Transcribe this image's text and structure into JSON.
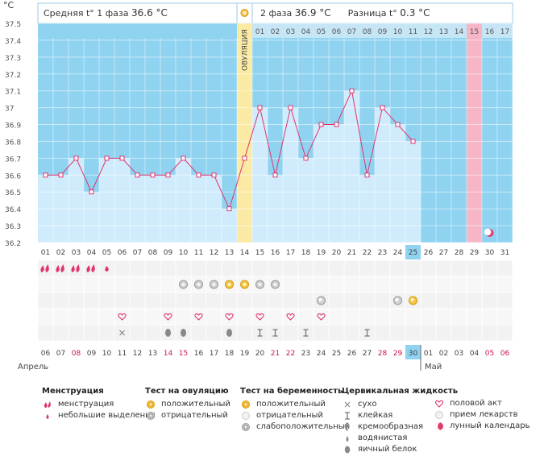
{
  "header": {
    "unit": "°C",
    "phase1_label": "Средняя t° 1 фаза",
    "phase1_value": "36.6 °C",
    "phase2_label": "2 фаза",
    "phase2_value": "36.9 °C",
    "diff_label": "Разница t°",
    "diff_value": "0.3 °C",
    "ovulation_label": "ОВУЛЯЦИЯ"
  },
  "colors": {
    "background": "#8fd3f1",
    "bar_fill": "#d0ecfc",
    "line": "#e0336f",
    "ovulation": "#fbeaa3",
    "fertile": "#f7b6c7",
    "today": "#8fd3f1"
  },
  "chart_data": {
    "type": "bar",
    "ylim": [
      36.2,
      37.5
    ],
    "y_ticks": [
      "37.5",
      "37.4",
      "37.3",
      "37.2",
      "37.1",
      "37",
      "36.9",
      "36.8",
      "36.7",
      "36.6",
      "36.5",
      "36.4",
      "36.3",
      "36.2"
    ],
    "cycle_days": [
      "01",
      "02",
      "03",
      "04",
      "05",
      "06",
      "07",
      "08",
      "09",
      "10",
      "11",
      "12",
      "13",
      "14",
      "15",
      "16",
      "17",
      "18",
      "19",
      "20",
      "21",
      "22",
      "23",
      "24",
      "25",
      "26",
      "27",
      "28",
      "29",
      "30",
      "31"
    ],
    "phase2_day_labels": [
      "01",
      "02",
      "03",
      "04",
      "05",
      "06",
      "07",
      "08",
      "09",
      "10",
      "11",
      "12",
      "13",
      "14",
      "15",
      "16",
      "17"
    ],
    "temperatures": [
      36.6,
      36.6,
      36.7,
      36.5,
      36.7,
      36.7,
      36.6,
      36.6,
      36.6,
      36.7,
      36.6,
      36.6,
      36.4,
      36.7,
      37.0,
      36.6,
      37.0,
      36.7,
      36.9,
      36.9,
      37.1,
      36.6,
      37.0,
      36.9,
      36.8
    ],
    "ovulation_day": 14,
    "today_day": 25,
    "fertile_day": 29,
    "calendar_dates": [
      "06",
      "07",
      "08",
      "09",
      "10",
      "11",
      "12",
      "13",
      "14",
      "15",
      "16",
      "17",
      "18",
      "19",
      "20",
      "21",
      "22",
      "23",
      "24",
      "25",
      "26",
      "27",
      "28",
      "29",
      "30",
      "01",
      "02",
      "03",
      "04",
      "05",
      "06"
    ],
    "calendar_weekend_indexes": [
      2,
      8,
      9,
      15,
      16,
      22,
      23,
      29,
      30
    ],
    "calendar_today_index": 24,
    "month_april": "Апрель",
    "month_may": "Май"
  },
  "rows": {
    "menstruation": {
      "heavy": [
        1,
        2,
        3,
        4
      ],
      "light": [
        5
      ]
    },
    "ovulation_test": {
      "positive": [
        13,
        14
      ],
      "negative": [
        10,
        11,
        12,
        15,
        16
      ]
    },
    "pregnancy_test": {
      "positive": [
        25
      ],
      "weak": [
        19,
        24
      ]
    },
    "intercourse": [
      6,
      9,
      11,
      13,
      15,
      17,
      19
    ],
    "cervical": {
      "dry": [
        6
      ],
      "eggwhite": [
        9,
        10,
        13
      ],
      "sticky": [
        15,
        16,
        18,
        22
      ]
    }
  },
  "legend": {
    "menstruation": {
      "title": "Менструация",
      "items": [
        "менструация",
        "небольшие выделения"
      ]
    },
    "ovulation_test": {
      "title": "Тест на овуляцию",
      "items": [
        "положительный",
        "отрицательный"
      ]
    },
    "pregnancy_test": {
      "title": "Тест на беременность",
      "items": [
        "положительный",
        "отрицательный",
        "слабоположительный"
      ]
    },
    "cervical": {
      "title": "Цервикальная жидкость",
      "items": [
        "сухо",
        "клейкая",
        "кремообразная",
        "водянистая",
        "яичный белок"
      ]
    },
    "other": {
      "items": [
        "половой акт",
        "прием лекарств",
        "лунный календарь"
      ]
    }
  }
}
